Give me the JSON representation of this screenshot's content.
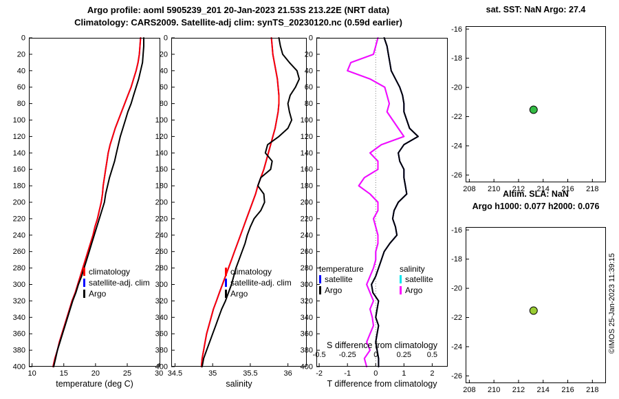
{
  "header": {
    "title_line1": "Argo profile: aoml 5905239_201 20-Jan-2023 21.53S 213.22E (NRT data)",
    "title_line2": "Climatology: CARS2009. Satellite-adj clim: synTS_20230120.nc (0.59d earlier)"
  },
  "footer": {
    "watermark": "©IMOS 25-Jan-2023 11:39:15"
  },
  "chart_data": [
    {
      "id": "temp",
      "type": "line",
      "xlabel": "temperature (deg C)",
      "xlim": [
        9.5,
        30.2
      ],
      "xticks": [
        10,
        15,
        20,
        25,
        30
      ],
      "ylim": [
        0,
        400
      ],
      "yticks": [
        0,
        20,
        40,
        60,
        80,
        100,
        120,
        140,
        160,
        180,
        200,
        220,
        240,
        260,
        280,
        300,
        320,
        340,
        360,
        380,
        400
      ],
      "depths": [
        0,
        10,
        20,
        30,
        40,
        50,
        60,
        70,
        80,
        90,
        100,
        110,
        120,
        130,
        140,
        150,
        160,
        170,
        180,
        190,
        200,
        210,
        220,
        230,
        240,
        250,
        260,
        270,
        280,
        290,
        300,
        310,
        320,
        330,
        340,
        350,
        360,
        370,
        380,
        390,
        400
      ],
      "series": [
        {
          "name": "satellite-adj. clim",
          "color": "#0000ff",
          "width": 2,
          "values": [
            27.1,
            27.0,
            26.9,
            26.7,
            26.4,
            26.0,
            25.6,
            25.1,
            24.6,
            24.1,
            23.6,
            23.1,
            22.7,
            22.3,
            22.0,
            21.8,
            21.6,
            21.4,
            21.2,
            21.1,
            20.9,
            20.6,
            20.3,
            19.9,
            19.6,
            19.2,
            18.8,
            18.4,
            18.0,
            17.6,
            17.2,
            16.8,
            16.3,
            15.9,
            15.5,
            15.1,
            14.7,
            14.3,
            14.0,
            13.6,
            13.3
          ]
        },
        {
          "name": "climatology",
          "color": "#ff0000",
          "width": 2,
          "values": [
            27.1,
            27.0,
            26.9,
            26.7,
            26.4,
            26.0,
            25.6,
            25.1,
            24.6,
            24.1,
            23.6,
            23.1,
            22.7,
            22.3,
            22.0,
            21.8,
            21.6,
            21.4,
            21.2,
            21.1,
            20.9,
            20.6,
            20.3,
            19.9,
            19.6,
            19.2,
            18.8,
            18.4,
            18.0,
            17.6,
            17.2,
            16.8,
            16.3,
            15.9,
            15.5,
            15.1,
            14.7,
            14.3,
            14.0,
            13.6,
            13.3
          ]
        },
        {
          "name": "Argo",
          "color": "#000000",
          "width": 2,
          "values": [
            27.6,
            27.6,
            27.5,
            27.4,
            27.1,
            26.8,
            26.4,
            26.0,
            25.6,
            25.1,
            24.7,
            24.3,
            23.9,
            23.6,
            23.3,
            23.0,
            22.6,
            22.2,
            21.9,
            21.6,
            21.4,
            21.0,
            20.6,
            20.2,
            19.8,
            19.4,
            19.0,
            18.6,
            18.2,
            17.8,
            17.3,
            16.9,
            16.4,
            16.0,
            15.6,
            15.2,
            14.8,
            14.4,
            14.0,
            13.7,
            13.4
          ]
        }
      ]
    },
    {
      "id": "sal",
      "type": "line",
      "xlabel": "salinity",
      "xlim": [
        34.45,
        36.25
      ],
      "xticks": [
        34.5,
        35,
        35.5,
        36
      ],
      "ylim": [
        0,
        400
      ],
      "yticks": [
        0,
        20,
        40,
        60,
        80,
        100,
        120,
        140,
        160,
        180,
        200,
        220,
        240,
        260,
        280,
        300,
        320,
        340,
        360,
        380,
        400
      ],
      "depths": [
        0,
        10,
        20,
        30,
        40,
        50,
        60,
        70,
        80,
        90,
        100,
        110,
        120,
        130,
        140,
        150,
        160,
        170,
        180,
        190,
        200,
        210,
        220,
        230,
        240,
        250,
        260,
        270,
        280,
        290,
        300,
        310,
        320,
        330,
        340,
        350,
        360,
        370,
        380,
        390,
        400
      ],
      "series": [
        {
          "name": "satellite-adj. clim",
          "color": "#0000ff",
          "width": 2,
          "values": [
            35.78,
            35.79,
            35.8,
            35.82,
            35.84,
            35.86,
            35.87,
            35.88,
            35.88,
            35.87,
            35.85,
            35.83,
            35.8,
            35.77,
            35.74,
            35.71,
            35.68,
            35.64,
            35.6,
            35.57,
            35.53,
            35.49,
            35.45,
            35.41,
            35.37,
            35.33,
            35.29,
            35.25,
            35.21,
            35.17,
            35.13,
            35.09,
            35.05,
            35.01,
            34.98,
            34.95,
            34.92,
            34.9,
            34.88,
            34.86,
            34.85
          ]
        },
        {
          "name": "climatology",
          "color": "#ff0000",
          "width": 2,
          "values": [
            35.78,
            35.79,
            35.8,
            35.82,
            35.84,
            35.86,
            35.87,
            35.88,
            35.88,
            35.87,
            35.85,
            35.83,
            35.8,
            35.77,
            35.74,
            35.71,
            35.68,
            35.64,
            35.6,
            35.57,
            35.53,
            35.49,
            35.45,
            35.41,
            35.37,
            35.33,
            35.29,
            35.25,
            35.21,
            35.17,
            35.13,
            35.09,
            35.05,
            35.01,
            34.98,
            34.95,
            34.92,
            34.9,
            34.88,
            34.86,
            34.85
          ]
        },
        {
          "name": "Argo",
          "color": "#000000",
          "width": 2,
          "values": [
            35.88,
            35.9,
            35.93,
            36.02,
            36.12,
            36.15,
            36.1,
            36.03,
            36.0,
            36.02,
            36.05,
            36.0,
            35.88,
            35.73,
            35.7,
            35.79,
            35.77,
            35.64,
            35.6,
            35.68,
            35.69,
            35.64,
            35.55,
            35.5,
            35.46,
            35.43,
            35.39,
            35.35,
            35.31,
            35.28,
            35.25,
            35.21,
            35.17,
            35.12,
            35.08,
            35.04,
            35.0,
            34.96,
            34.92,
            34.88,
            34.86
          ]
        }
      ]
    },
    {
      "id": "diff",
      "type": "line",
      "xlabel": "T difference from climatology",
      "xlim": [
        -2.1,
        2.55
      ],
      "xticks": [
        -2,
        -1,
        0,
        1,
        2
      ],
      "ylim": [
        0,
        400
      ],
      "yticks": [
        0,
        20,
        40,
        60,
        80,
        100,
        120,
        140,
        160,
        180,
        200,
        220,
        240,
        260,
        280,
        300,
        320,
        340,
        360,
        380,
        400
      ],
      "zero_line": true,
      "legend_titles": [
        "temperature",
        "salinity"
      ],
      "secondary": {
        "label": "S difference from climatology",
        "ticks": [
          -0.5,
          -0.25,
          0,
          0.25,
          0.5
        ],
        "scale": 4
      },
      "depths": [
        0,
        10,
        20,
        30,
        40,
        50,
        60,
        70,
        80,
        90,
        100,
        110,
        120,
        130,
        140,
        150,
        160,
        170,
        180,
        190,
        200,
        210,
        220,
        230,
        240,
        250,
        260,
        270,
        280,
        290,
        300,
        310,
        320,
        330,
        340,
        350,
        360,
        370,
        380,
        390,
        400
      ],
      "series": [
        {
          "name": "satellite",
          "color": "#0000ff",
          "width": 2,
          "values": [
            0.3,
            0.4,
            0.45,
            0.5,
            0.55,
            0.7,
            0.85,
            0.95,
            1.0,
            1.0,
            1.1,
            1.2,
            1.5,
            1.0,
            0.8,
            0.85,
            1.0,
            1.0,
            1.05,
            1.1,
            0.8,
            0.65,
            0.6,
            0.7,
            0.75,
            0.5,
            0.3,
            0.2,
            0.1,
            0.0,
            -0.15,
            -0.1,
            0.1,
            0.05,
            0.0,
            0.1,
            0.05,
            0.0,
            0.05,
            0.1,
            0.1
          ]
        },
        {
          "name": "satellite",
          "color": "#00e5ee",
          "width": 2,
          "scale": 4,
          "values": [
            0.02,
            0.0,
            -0.02,
            -0.22,
            -0.25,
            -0.05,
            0.08,
            0.1,
            0.12,
            0.1,
            0.15,
            0.2,
            0.25,
            0.05,
            -0.05,
            0.02,
            0.02,
            -0.1,
            -0.15,
            -0.05,
            0.02,
            0.02,
            -0.02,
            0.0,
            0.02,
            0.02,
            0.0,
            0.0,
            -0.02,
            -0.05,
            -0.08,
            -0.05,
            -0.02,
            -0.05,
            -0.03,
            -0.02,
            -0.05,
            -0.08,
            -0.05,
            -0.1,
            -0.08
          ]
        },
        {
          "name": "Argo",
          "color": "#ff00ff",
          "width": 2,
          "scale": 4,
          "values": [
            0.02,
            0.0,
            -0.02,
            -0.22,
            -0.25,
            -0.05,
            0.08,
            0.1,
            0.12,
            0.1,
            0.15,
            0.2,
            0.25,
            0.05,
            -0.05,
            0.02,
            0.02,
            -0.1,
            -0.15,
            -0.05,
            0.02,
            0.02,
            -0.02,
            0.0,
            0.02,
            0.02,
            0.0,
            0.0,
            -0.02,
            -0.05,
            -0.08,
            -0.05,
            -0.02,
            -0.05,
            -0.03,
            -0.02,
            -0.05,
            -0.08,
            -0.05,
            -0.1,
            -0.08
          ]
        },
        {
          "name": "Argo",
          "color": "#000000",
          "width": 2,
          "values": [
            0.3,
            0.4,
            0.45,
            0.5,
            0.55,
            0.7,
            0.85,
            0.95,
            1.0,
            1.0,
            1.1,
            1.2,
            1.5,
            1.0,
            0.8,
            0.85,
            1.0,
            1.0,
            1.05,
            1.1,
            0.8,
            0.65,
            0.6,
            0.7,
            0.75,
            0.5,
            0.3,
            0.2,
            0.1,
            0.0,
            -0.15,
            -0.1,
            0.1,
            0.05,
            0.0,
            0.1,
            0.05,
            0.0,
            0.05,
            0.1,
            0.1
          ]
        }
      ]
    },
    {
      "id": "map_sst",
      "type": "scatter",
      "title": "sat. SST: NaN Argo: 27.4",
      "xlim": [
        207.7,
        219.1
      ],
      "xticks": [
        208,
        210,
        212,
        214,
        216,
        218
      ],
      "ylim": [
        -15.8,
        -26.5
      ],
      "yticks": [
        -16,
        -18,
        -20,
        -22,
        -24,
        -26
      ],
      "points": [
        {
          "x": 213.22,
          "y": -21.53,
          "color": "#33bb44"
        }
      ]
    },
    {
      "id": "map_sla",
      "type": "scatter",
      "title": "Altim. SLA: NaN",
      "subtitle": "Argo h1000: 0.077 h2000: 0.076",
      "xlim": [
        207.7,
        219.1
      ],
      "xticks": [
        208,
        210,
        212,
        214,
        216,
        218
      ],
      "ylim": [
        -15.8,
        -26.5
      ],
      "yticks": [
        -16,
        -18,
        -20,
        -22,
        -24,
        -26
      ],
      "points": [
        {
          "x": 213.22,
          "y": -21.53,
          "color": "#99cc33"
        }
      ]
    }
  ]
}
